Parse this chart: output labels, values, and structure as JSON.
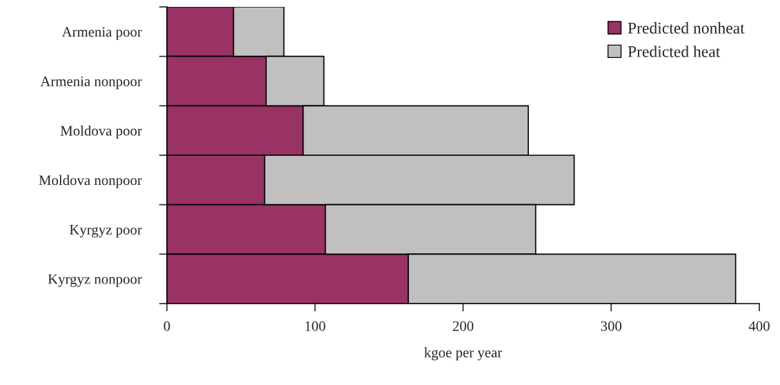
{
  "chart_data": {
    "type": "bar",
    "orientation": "horizontal",
    "stacked": true,
    "xlabel": "kgoe per year",
    "categories": [
      "Armenia poor",
      "Armenia nonpoor",
      "Moldova poor",
      "Moldova nonpoor",
      "Kyrgyz poor",
      "Kyrgyz nonpoor"
    ],
    "series": [
      {
        "name": "Predicted nonheat",
        "color": "#993366",
        "values": [
          45,
          67,
          92,
          66,
          107,
          163
        ]
      },
      {
        "name": "Predicted heat",
        "color": "#c0c0c0",
        "values": [
          34,
          39,
          152,
          209,
          142,
          221
        ]
      }
    ],
    "xlim": [
      0,
      400
    ],
    "xticks": [
      0,
      100,
      200,
      300,
      400
    ],
    "grid": false,
    "legend": "top right"
  }
}
